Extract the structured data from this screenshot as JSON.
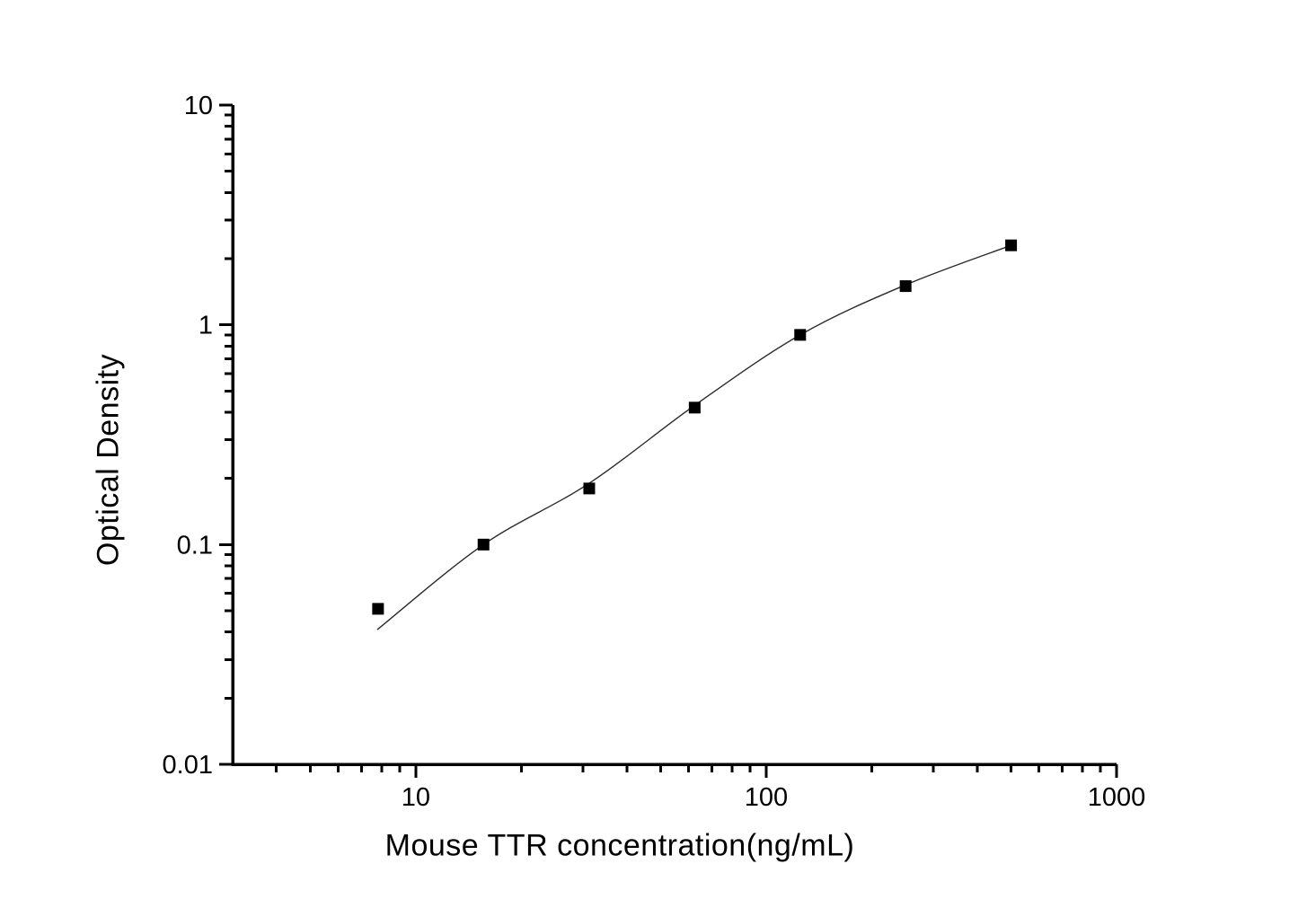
{
  "chart_data": {
    "type": "scatter",
    "title": "",
    "xlabel": "Mouse TTR concentration(ng/mL)",
    "ylabel": "Optical Density",
    "x_scale": "log",
    "y_scale": "log",
    "xlim": [
      3,
      1000
    ],
    "ylim": [
      0.01,
      10
    ],
    "grid": false,
    "legend_position": "none",
    "x_major_ticks": [
      10,
      100,
      1000
    ],
    "x_tick_labels": [
      "10",
      "100",
      "1000"
    ],
    "y_major_ticks": [
      0.01,
      0.1,
      1,
      10
    ],
    "y_tick_labels": [
      "0.01",
      "0.1",
      "1",
      "10"
    ],
    "colors": {
      "axis": "#000000",
      "marker": "#000000",
      "curve": "#2b2b2b",
      "background": "#ffffff"
    },
    "series": [
      {
        "name": "standard points",
        "type": "scatter",
        "marker": "square",
        "x": [
          7.8,
          15.6,
          31.25,
          62.5,
          125,
          250,
          500
        ],
        "y": [
          0.051,
          0.1,
          0.18,
          0.42,
          0.9,
          1.5,
          2.3
        ]
      },
      {
        "name": "fitted standard curve",
        "type": "line",
        "x": [
          7.76,
          15.6,
          31.25,
          62.5,
          125,
          250,
          500
        ],
        "y": [
          0.041,
          0.1,
          0.19,
          0.43,
          0.9,
          1.52,
          2.3
        ]
      }
    ]
  }
}
